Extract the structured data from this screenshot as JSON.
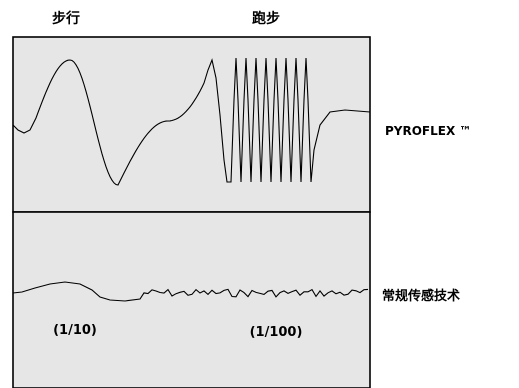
{
  "header": {
    "walk_label": "步行",
    "run_label": "跑步"
  },
  "signals": [
    {
      "label": "PYROFLEX ™"
    },
    {
      "label": "常规传感技术"
    }
  ],
  "ratios": {
    "walk": "(1/10)",
    "run": "(1/100)"
  },
  "colors": {
    "panel_fill": "#e6e6e6",
    "line": "#000000",
    "text": "#000000"
  }
}
